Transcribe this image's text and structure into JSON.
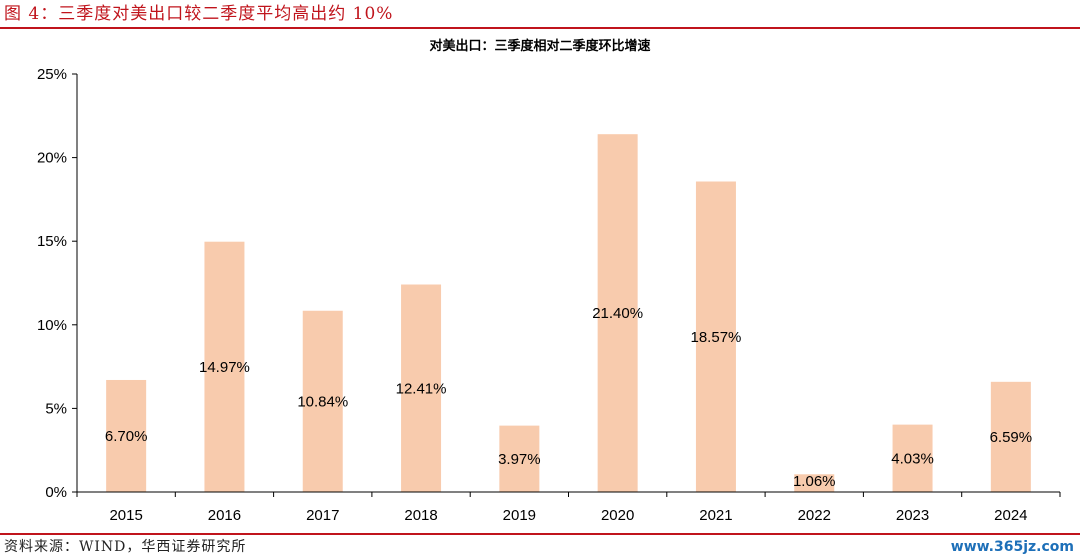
{
  "figure": {
    "title": "图 4：三季度对美出口较二季度平均高出约 10%",
    "source": "资料来源：WIND，华西证券研究所",
    "watermark": "www.365jz.com"
  },
  "colors": {
    "accent": "#c0141c",
    "bar": "#f8cbad",
    "axis": "#000000",
    "watermark": "#1d6fb8"
  },
  "chart_data": {
    "type": "bar",
    "title": "对美出口：三季度相对二季度环比增速",
    "categories": [
      "2015",
      "2016",
      "2017",
      "2018",
      "2019",
      "2020",
      "2021",
      "2022",
      "2023",
      "2024"
    ],
    "values": [
      6.7,
      14.97,
      10.84,
      12.41,
      3.97,
      21.4,
      18.57,
      1.06,
      4.03,
      6.59
    ],
    "data_labels": [
      "6.70%",
      "14.97%",
      "10.84%",
      "12.41%",
      "3.97%",
      "21.40%",
      "18.57%",
      "1.06%",
      "4.03%",
      "6.59%"
    ],
    "yticks": [
      0,
      5,
      10,
      15,
      20,
      25
    ],
    "ytick_labels": [
      "0%",
      "5%",
      "10%",
      "15%",
      "20%",
      "25%"
    ],
    "ylim": [
      0,
      25
    ],
    "xlabel": "",
    "ylabel": "",
    "grid": false,
    "legend": "none"
  }
}
